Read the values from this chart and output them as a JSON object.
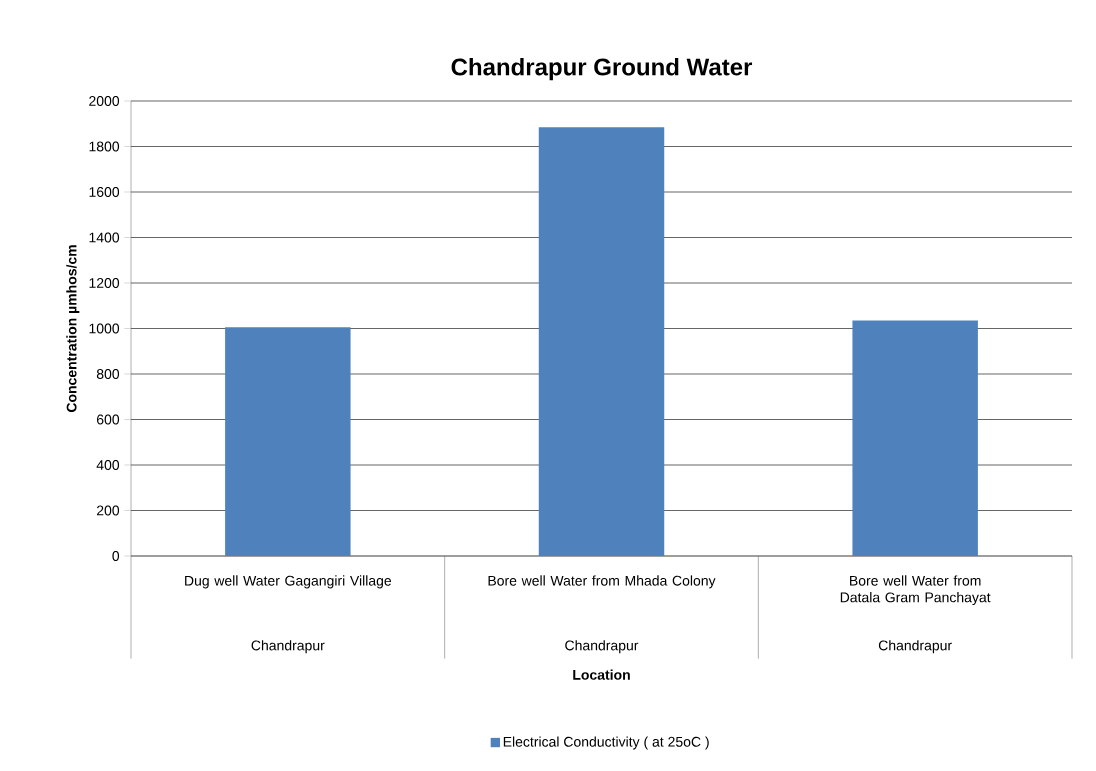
{
  "chart_data": {
    "type": "bar",
    "title": "Chandrapur Ground Water",
    "xlabel": "Location",
    "ylabel": "Concentration µmhos/cm",
    "categories": [
      "Dug well Water Gagangiri Village",
      "Bore well Water from Mhada Colony",
      "Bore well Water from Datala Gram Panchayat"
    ],
    "series": [
      {
        "name": "Electrical Conductivity ( at 25oC )",
        "color": "#4f81bd",
        "values": [
          1005,
          1885,
          1035
        ]
      }
    ],
    "annotations": [
      "Chandrapur",
      "Chandrapur",
      "Chandrapur"
    ],
    "ylim": [
      0,
      2000
    ],
    "yticks": [
      0,
      200,
      400,
      600,
      800,
      1000,
      1200,
      1400,
      1600,
      1800,
      2000
    ],
    "grid": "y",
    "legend": "bottom"
  }
}
